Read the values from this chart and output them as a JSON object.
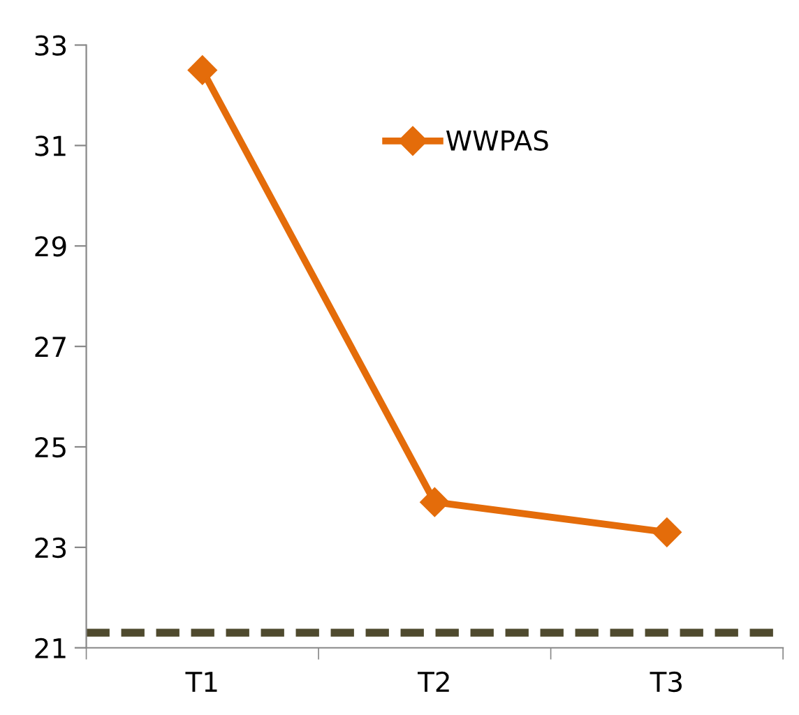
{
  "chart_data": {
    "type": "line",
    "categories": [
      "T1",
      "T2",
      "T3"
    ],
    "series": [
      {
        "name": "WWPAS",
        "color": "#e46c0a",
        "values": [
          32.5,
          23.9,
          23.3
        ]
      }
    ],
    "ylim": [
      21,
      33
    ],
    "yticks": [
      21,
      23,
      25,
      27,
      29,
      31,
      33
    ],
    "ref_lines": [
      {
        "axis": "y",
        "value": 21.3,
        "color": "#4f4a2e",
        "line_style": "dashed"
      }
    ],
    "marker": "diamond",
    "line_style": "solid",
    "legend": "top right",
    "grid": false
  }
}
